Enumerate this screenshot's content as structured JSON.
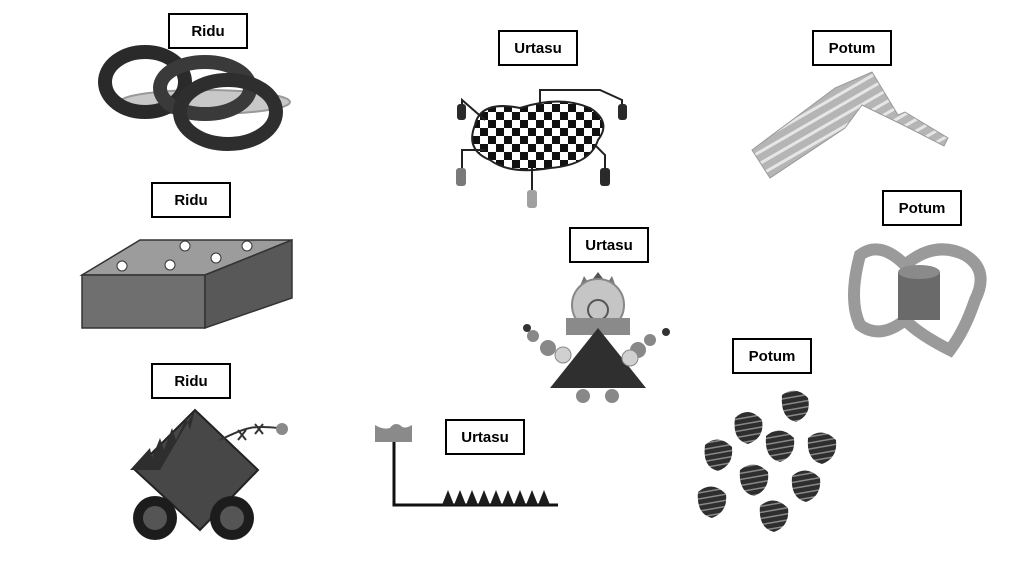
{
  "labels": {
    "ridu_top": "Ridu",
    "ridu_middle": "Ridu",
    "ridu_bottom": "Ridu",
    "urtasu_top": "Urtasu",
    "urtasu_middle": "Urtasu",
    "urtasu_bottom": "Urtasu",
    "potum_top": "Potum",
    "potum_middle": "Potum",
    "potum_bottom": "Potum"
  },
  "colors": {
    "dark": "#2f2f2f",
    "mid": "#7a7a7a",
    "light": "#b8b8b8",
    "lighter": "#cfcfcf",
    "border": "#000000"
  }
}
